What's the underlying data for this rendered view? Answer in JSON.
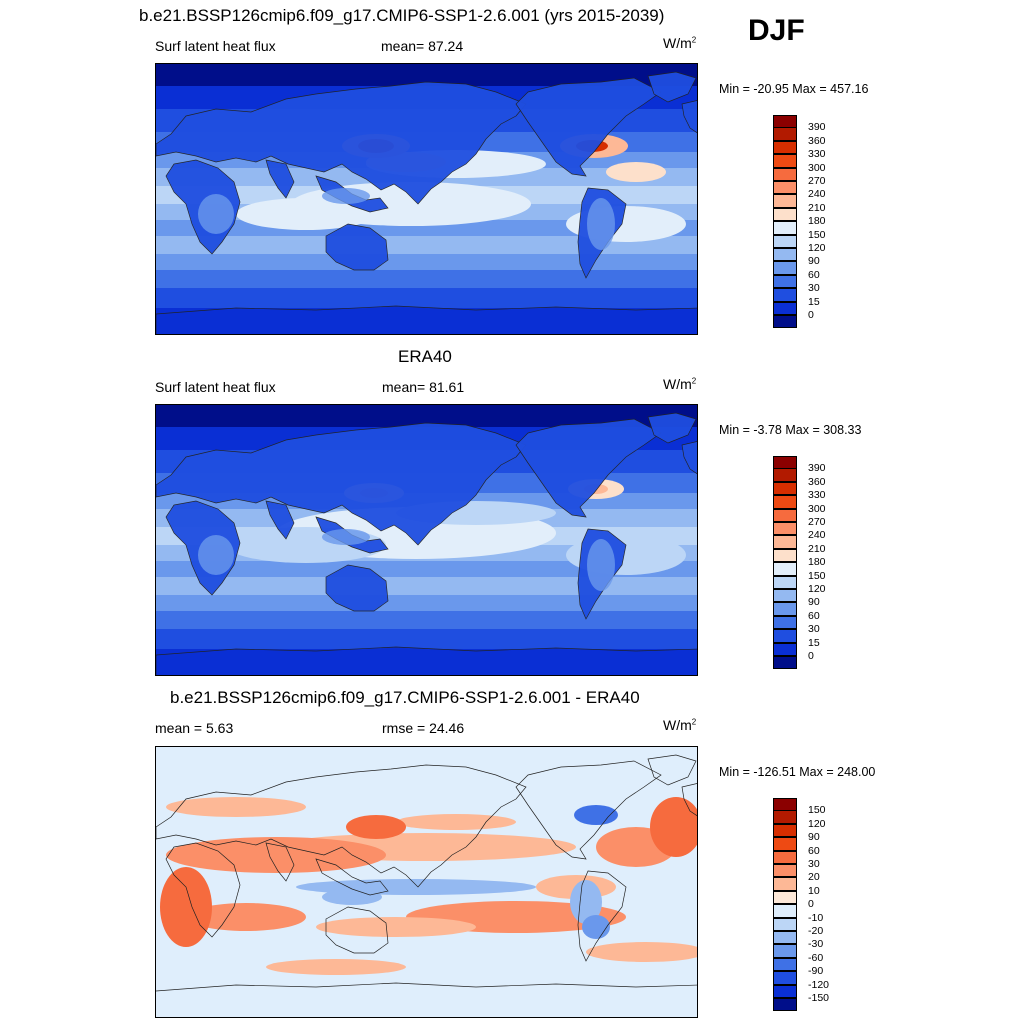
{
  "season": "DJF",
  "panels": [
    {
      "title": "b.e21.BSSP126cmip6.f09_g17.CMIP6-SSP1-2.6.001 (yrs 2015-2039)",
      "left_label": "Surf latent heat flux",
      "center_label": "mean=  87.24",
      "units": "W/m",
      "units_sup": "2",
      "minmax": "Min = -20.95 Max = 457.16",
      "colorbar": {
        "labels": [
          "390",
          "360",
          "330",
          "300",
          "270",
          "240",
          "210",
          "180",
          "150",
          "120",
          "90",
          "60",
          "30",
          "15",
          "0"
        ],
        "colors": [
          "#8b0000",
          "#b21a00",
          "#d62e00",
          "#ee4a13",
          "#f66b3e",
          "#fb8f68",
          "#fdb896",
          "#fde0cb",
          "#e2eefa",
          "#bcd6f6",
          "#94b9f1",
          "#6a98ec",
          "#3f71e6",
          "#1f4ee0",
          "#0a2fd4",
          "#000e8a"
        ]
      },
      "map_style": "model"
    },
    {
      "title": "ERA40",
      "left_label": "Surf latent heat flux",
      "center_label": "mean=  81.61",
      "units": "W/m",
      "units_sup": "2",
      "minmax": "Min =  -3.78 Max = 308.33",
      "colorbar": {
        "labels": [
          "390",
          "360",
          "330",
          "300",
          "270",
          "240",
          "210",
          "180",
          "150",
          "120",
          "90",
          "60",
          "30",
          "15",
          "0"
        ],
        "colors": [
          "#8b0000",
          "#b21a00",
          "#d62e00",
          "#ee4a13",
          "#f66b3e",
          "#fb8f68",
          "#fdb896",
          "#fde0cb",
          "#e2eefa",
          "#bcd6f6",
          "#94b9f1",
          "#6a98ec",
          "#3f71e6",
          "#1f4ee0",
          "#0a2fd4",
          "#000e8a"
        ]
      },
      "map_style": "obs"
    },
    {
      "title": "b.e21.BSSP126cmip6.f09_g17.CMIP6-SSP1-2.6.001 - ERA40",
      "left_label": "mean =   5.63",
      "center_label": "rmse =  24.46",
      "units": "W/m",
      "units_sup": "2",
      "minmax": "Min = -126.51 Max = 248.00",
      "colorbar": {
        "labels": [
          "150",
          "120",
          "90",
          "60",
          "30",
          "20",
          "10",
          "0",
          "-10",
          "-20",
          "-30",
          "-60",
          "-90",
          "-120",
          "-150"
        ],
        "colors": [
          "#8b0000",
          "#b21a00",
          "#d62e00",
          "#ee4a13",
          "#f66b3e",
          "#fb8f68",
          "#fdb896",
          "#fde8d8",
          "#dfeefc",
          "#bcd6f6",
          "#94b9f1",
          "#6a98ec",
          "#3f71e6",
          "#1f4ee0",
          "#0a2fd4",
          "#000e8a"
        ]
      },
      "map_style": "diff"
    }
  ]
}
